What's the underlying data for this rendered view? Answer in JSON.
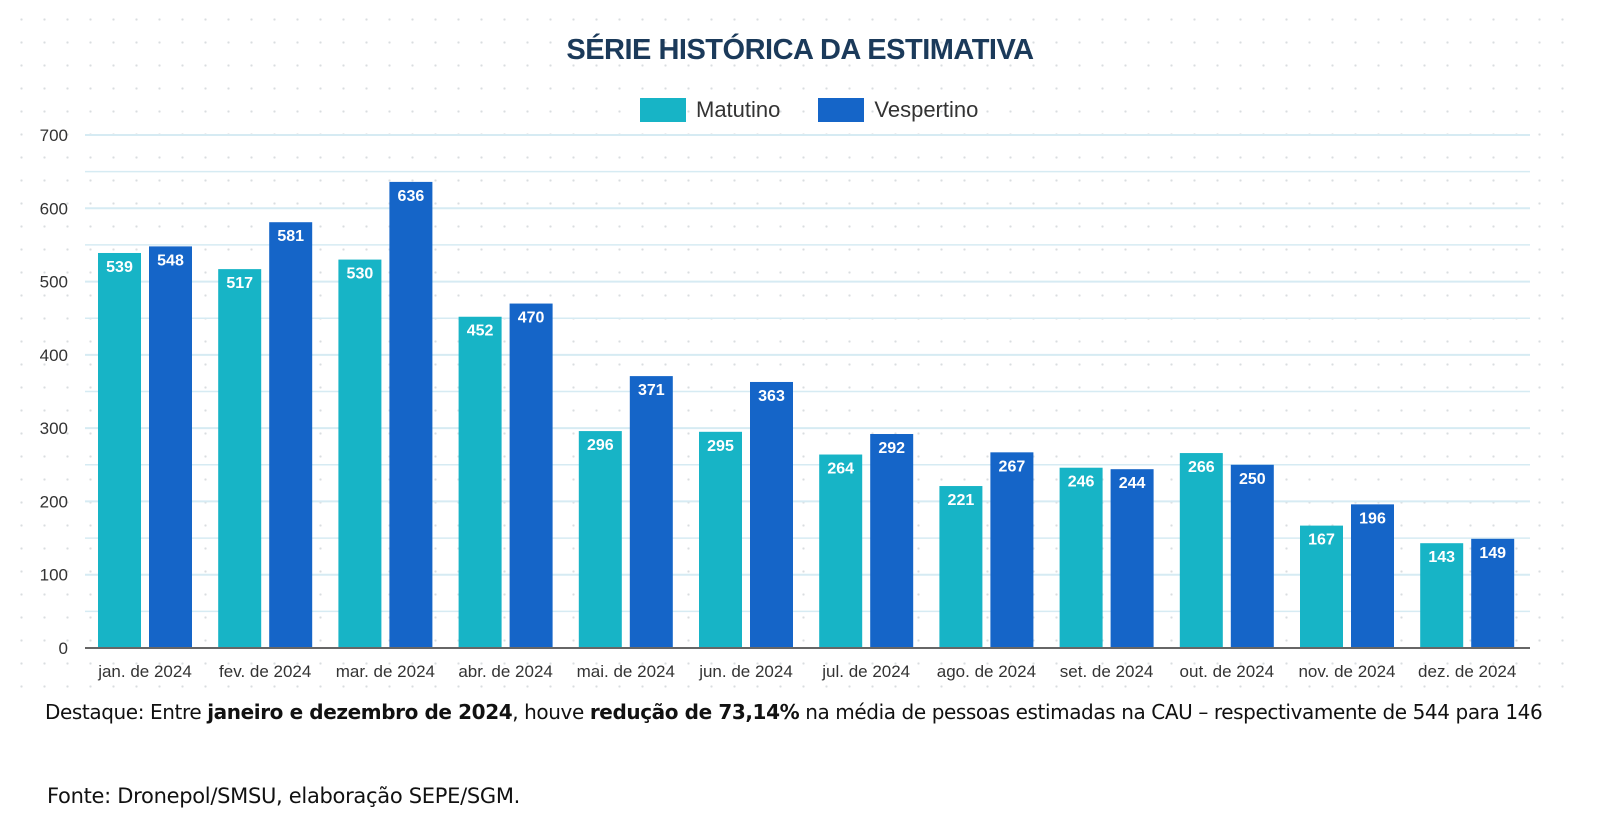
{
  "chart_data": {
    "type": "bar",
    "title": "SÉRIE HISTÓRICA DA ESTIMATIVA",
    "categories": [
      "jan. de 2024",
      "fev. de 2024",
      "mar. de 2024",
      "abr. de 2024",
      "mai. de 2024",
      "jun. de 2024",
      "jul. de 2024",
      "ago. de 2024",
      "set. de 2024",
      "out. de 2024",
      "nov. de 2024",
      "dez. de 2024"
    ],
    "series": [
      {
        "name": "Matutino",
        "color": "#17b4c6",
        "values": [
          539,
          517,
          530,
          452,
          296,
          295,
          264,
          221,
          246,
          266,
          167,
          143
        ]
      },
      {
        "name": "Vespertino",
        "color": "#1565c8",
        "values": [
          548,
          581,
          636,
          470,
          371,
          363,
          292,
          267,
          244,
          250,
          196,
          149
        ]
      }
    ],
    "ylim": [
      0,
      700
    ],
    "yticks": [
      0,
      100,
      200,
      300,
      400,
      500,
      600,
      700
    ],
    "grid": true,
    "legend_position": "top-center",
    "data_labels": true
  },
  "note": {
    "segments": [
      {
        "text": "Destaque: Entre ",
        "bold": false
      },
      {
        "text": "janeiro e dezembro de 2024",
        "bold": true
      },
      {
        "text": ", houve ",
        "bold": false
      },
      {
        "text": "redução de 73,14%",
        "bold": true
      },
      {
        "text": " na média de pessoas estimadas na CAU – respectivamente de 544 para 146",
        "bold": false
      }
    ]
  },
  "source": "Fonte: Dronepol/SMSU, elaboração SEPE/SGM."
}
